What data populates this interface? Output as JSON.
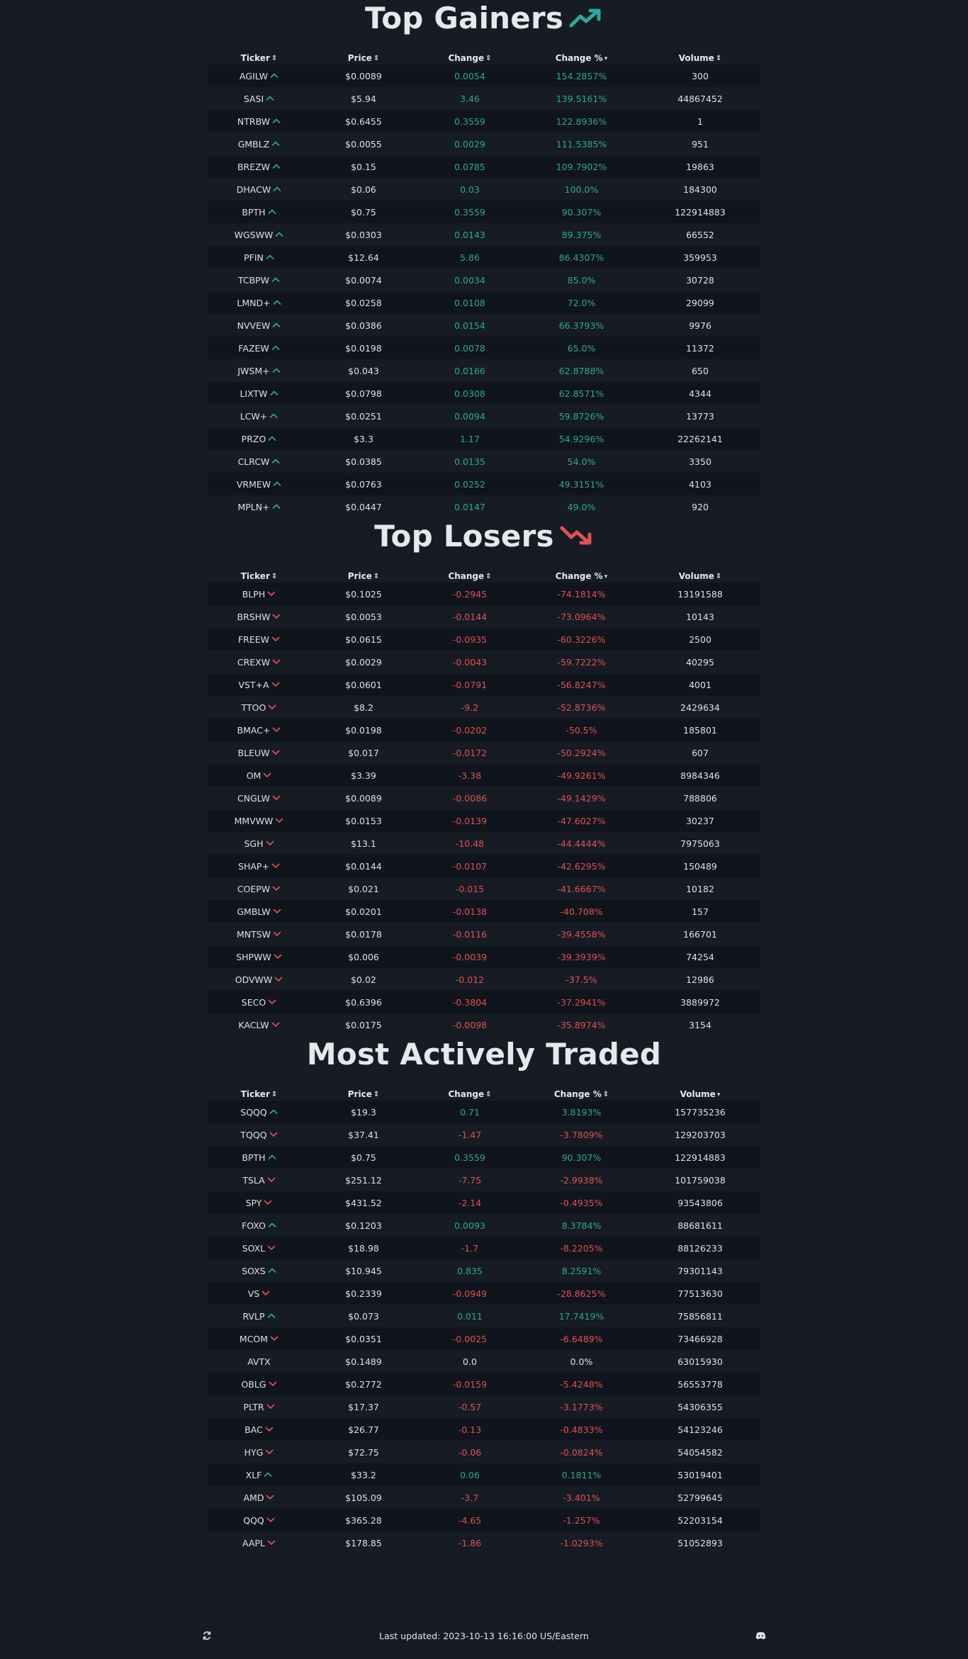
{
  "columns": {
    "ticker": "Ticker",
    "price": "Price",
    "change": "Change",
    "change_pct": "Change %",
    "volume": "Volume"
  },
  "sections": [
    {
      "id": "gainers",
      "title": "Top Gainers",
      "title_icon": "trending-up-icon",
      "title_icon_color": "#2ea89a",
      "sorted_column": "change_pct",
      "sort_direction": "desc",
      "rows": [
        [
          "AGILW",
          "$0.0089",
          "0.0054",
          "154.2857%",
          "300",
          "up"
        ],
        [
          "SASI",
          "$5.94",
          "3.46",
          "139.5161%",
          "44867452",
          "up"
        ],
        [
          "NTRBW",
          "$0.6455",
          "0.3559",
          "122.8936%",
          "1",
          "up"
        ],
        [
          "GMBLZ",
          "$0.0055",
          "0.0029",
          "111.5385%",
          "951",
          "up"
        ],
        [
          "BREZW",
          "$0.15",
          "0.0785",
          "109.7902%",
          "19863",
          "up"
        ],
        [
          "DHACW",
          "$0.06",
          "0.03",
          "100.0%",
          "184300",
          "up"
        ],
        [
          "BPTH",
          "$0.75",
          "0.3559",
          "90.307%",
          "122914883",
          "up"
        ],
        [
          "WGSWW",
          "$0.0303",
          "0.0143",
          "89.375%",
          "66552",
          "up"
        ],
        [
          "PFIN",
          "$12.64",
          "5.86",
          "86.4307%",
          "359953",
          "up"
        ],
        [
          "TCBPW",
          "$0.0074",
          "0.0034",
          "85.0%",
          "30728",
          "up"
        ],
        [
          "LMND+",
          "$0.0258",
          "0.0108",
          "72.0%",
          "29099",
          "up"
        ],
        [
          "NVVEW",
          "$0.0386",
          "0.0154",
          "66.3793%",
          "9976",
          "up"
        ],
        [
          "FAZEW",
          "$0.0198",
          "0.0078",
          "65.0%",
          "11372",
          "up"
        ],
        [
          "JWSM+",
          "$0.043",
          "0.0166",
          "62.8788%",
          "650",
          "up"
        ],
        [
          "LIXTW",
          "$0.0798",
          "0.0308",
          "62.8571%",
          "4344",
          "up"
        ],
        [
          "LCW+",
          "$0.0251",
          "0.0094",
          "59.8726%",
          "13773",
          "up"
        ],
        [
          "PRZO",
          "$3.3",
          "1.17",
          "54.9296%",
          "22262141",
          "up"
        ],
        [
          "CLRCW",
          "$0.0385",
          "0.0135",
          "54.0%",
          "3350",
          "up"
        ],
        [
          "VRMEW",
          "$0.0763",
          "0.0252",
          "49.3151%",
          "4103",
          "up"
        ],
        [
          "MPLN+",
          "$0.0447",
          "0.0147",
          "49.0%",
          "920",
          "up"
        ]
      ]
    },
    {
      "id": "losers",
      "title": "Top Losers",
      "title_icon": "trending-down-icon",
      "title_icon_color": "#e05252",
      "sorted_column": "change_pct",
      "sort_direction": "desc",
      "rows": [
        [
          "BLPH",
          "$0.1025",
          "-0.2945",
          "-74.1814%",
          "13191588",
          "down"
        ],
        [
          "BRSHW",
          "$0.0053",
          "-0.0144",
          "-73.0964%",
          "10143",
          "down"
        ],
        [
          "FREEW",
          "$0.0615",
          "-0.0935",
          "-60.3226%",
          "2500",
          "down"
        ],
        [
          "CREXW",
          "$0.0029",
          "-0.0043",
          "-59.7222%",
          "40295",
          "down"
        ],
        [
          "VST+A",
          "$0.0601",
          "-0.0791",
          "-56.8247%",
          "4001",
          "down"
        ],
        [
          "TTOO",
          "$8.2",
          "-9.2",
          "-52.8736%",
          "2429634",
          "down"
        ],
        [
          "BMAC+",
          "$0.0198",
          "-0.0202",
          "-50.5%",
          "185801",
          "down"
        ],
        [
          "BLEUW",
          "$0.017",
          "-0.0172",
          "-50.2924%",
          "607",
          "down"
        ],
        [
          "OM",
          "$3.39",
          "-3.38",
          "-49.9261%",
          "8984346",
          "down"
        ],
        [
          "CNGLW",
          "$0.0089",
          "-0.0086",
          "-49.1429%",
          "788806",
          "down"
        ],
        [
          "MMVWW",
          "$0.0153",
          "-0.0139",
          "-47.6027%",
          "30237",
          "down"
        ],
        [
          "SGH",
          "$13.1",
          "-10.48",
          "-44.4444%",
          "7975063",
          "down"
        ],
        [
          "SHAP+",
          "$0.0144",
          "-0.0107",
          "-42.6295%",
          "150489",
          "down"
        ],
        [
          "COEPW",
          "$0.021",
          "-0.015",
          "-41.6667%",
          "10182",
          "down"
        ],
        [
          "GMBLW",
          "$0.0201",
          "-0.0138",
          "-40.708%",
          "157",
          "down"
        ],
        [
          "MNTSW",
          "$0.0178",
          "-0.0116",
          "-39.4558%",
          "166701",
          "down"
        ],
        [
          "SHPWW",
          "$0.006",
          "-0.0039",
          "-39.3939%",
          "74254",
          "down"
        ],
        [
          "ODVWW",
          "$0.02",
          "-0.012",
          "-37.5%",
          "12986",
          "down"
        ],
        [
          "SECO",
          "$0.6396",
          "-0.3804",
          "-37.2941%",
          "3889972",
          "down"
        ],
        [
          "KACLW",
          "$0.0175",
          "-0.0098",
          "-35.8974%",
          "3154",
          "down"
        ]
      ]
    },
    {
      "id": "active",
      "title": "Most Actively Traded",
      "title_icon": "",
      "title_icon_color": "",
      "sorted_column": "volume",
      "sort_direction": "desc",
      "rows": [
        [
          "SQQQ",
          "$19.3",
          "0.71",
          "3.8193%",
          "157735236",
          "up"
        ],
        [
          "TQQQ",
          "$37.41",
          "-1.47",
          "-3.7809%",
          "129203703",
          "down"
        ],
        [
          "BPTH",
          "$0.75",
          "0.3559",
          "90.307%",
          "122914883",
          "up"
        ],
        [
          "TSLA",
          "$251.12",
          "-7.75",
          "-2.9938%",
          "101759038",
          "down"
        ],
        [
          "SPY",
          "$431.52",
          "-2.14",
          "-0.4935%",
          "93543806",
          "down"
        ],
        [
          "FOXO",
          "$0.1203",
          "0.0093",
          "8.3784%",
          "88681611",
          "up"
        ],
        [
          "SOXL",
          "$18.98",
          "-1.7",
          "-8.2205%",
          "88126233",
          "down"
        ],
        [
          "SOXS",
          "$10.945",
          "0.835",
          "8.2591%",
          "79301143",
          "up"
        ],
        [
          "VS",
          "$0.2339",
          "-0.0949",
          "-28.8625%",
          "77513630",
          "down"
        ],
        [
          "RVLP",
          "$0.073",
          "0.011",
          "17.7419%",
          "75856811",
          "up"
        ],
        [
          "MCOM",
          "$0.0351",
          "-0.0025",
          "-6.6489%",
          "73466928",
          "down"
        ],
        [
          "AVTX",
          "$0.1489",
          "0.0",
          "0.0%",
          "63015930",
          "none"
        ],
        [
          "OBLG",
          "$0.2772",
          "-0.0159",
          "-5.4248%",
          "56553778",
          "down"
        ],
        [
          "PLTR",
          "$17.37",
          "-0.57",
          "-3.1773%",
          "54306355",
          "down"
        ],
        [
          "BAC",
          "$26.77",
          "-0.13",
          "-0.4833%",
          "54123246",
          "down"
        ],
        [
          "HYG",
          "$72.75",
          "-0.06",
          "-0.0824%",
          "54054582",
          "down"
        ],
        [
          "XLF",
          "$33.2",
          "0.06",
          "0.1811%",
          "53019401",
          "up"
        ],
        [
          "AMD",
          "$105.09",
          "-3.7",
          "-3.401%",
          "52799645",
          "down"
        ],
        [
          "QQQ",
          "$365.28",
          "-4.65",
          "-1.257%",
          "52203154",
          "down"
        ],
        [
          "AAPL",
          "$178.85",
          "-1.86",
          "-1.0293%",
          "51052893",
          "down"
        ]
      ]
    }
  ],
  "footer": {
    "last_updated": "Last updated: 2023-10-13 16:16:00 US/Eastern",
    "left_icon": "refresh-icon",
    "right_icon": "discord-icon"
  },
  "colors": {
    "background": "#161b24",
    "row_alt": "#10141c",
    "positive": "#2ea89a",
    "negative": "#e05252",
    "text": "#e3e6ea"
  }
}
